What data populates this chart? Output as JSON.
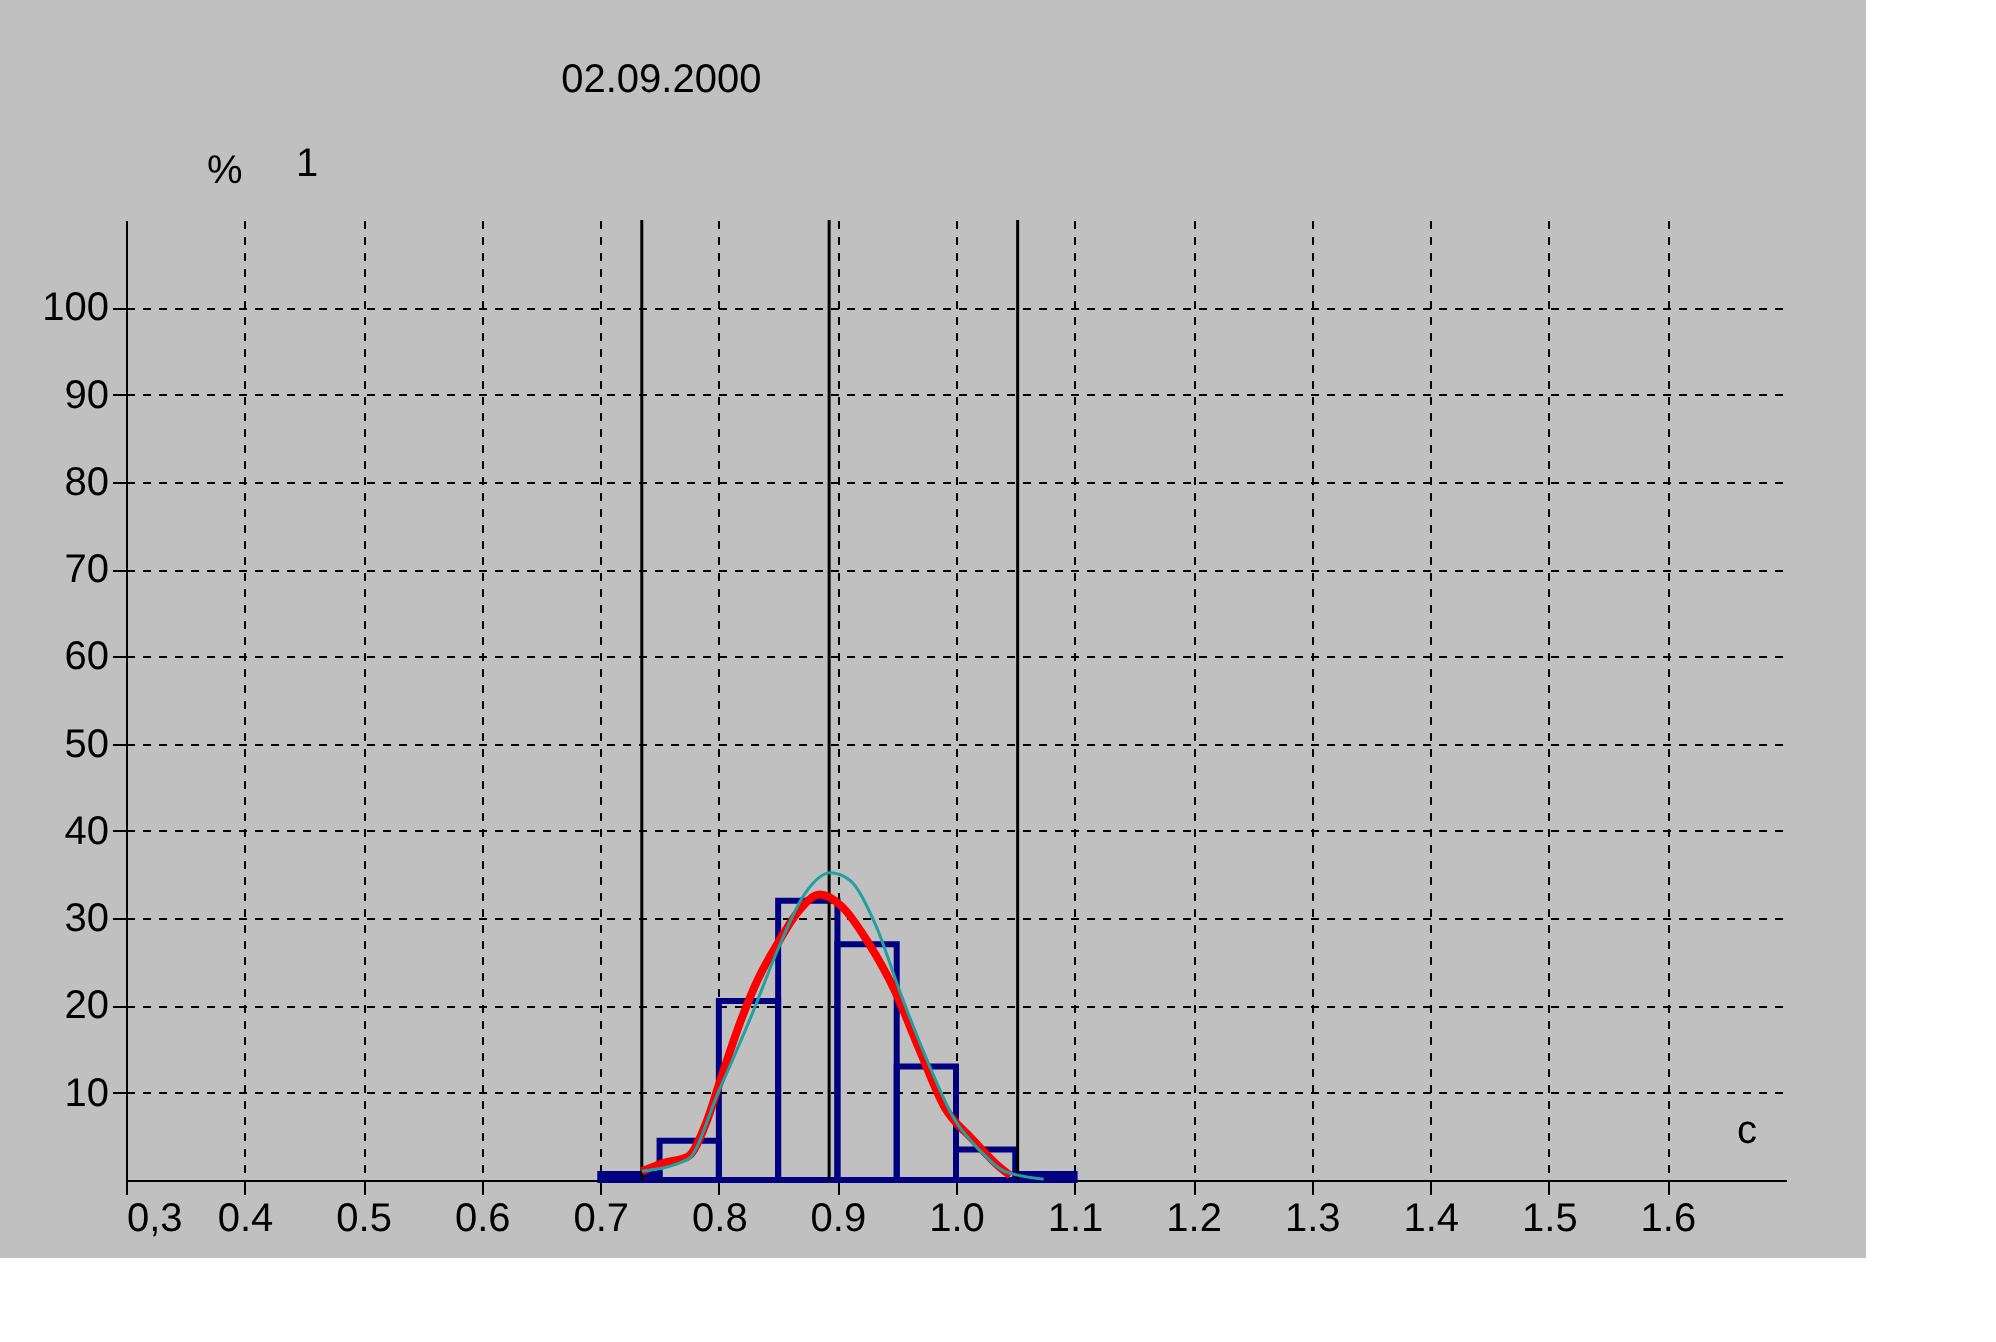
{
  "chart_data": {
    "type": "histogram",
    "title": "02.09.2000",
    "xlabel": "c",
    "ylabel": "%",
    "annotations": [
      "1"
    ],
    "bins": [
      0.7,
      0.75,
      0.8,
      0.85,
      0.9,
      0.95,
      1.0,
      1.05,
      1.1
    ],
    "values": [
      0.7,
      4.5,
      20.5,
      32,
      27,
      13,
      3.5,
      0.7
    ],
    "color": "#000080",
    "series": [
      {
        "type": "line",
        "color": "#ff0000",
        "x": [
          0.735,
          0.752,
          0.774,
          0.79,
          0.8,
          0.817,
          0.833,
          0.85,
          0.866,
          0.885,
          0.904,
          0.926,
          0.948,
          0.969,
          0.991,
          1.013,
          1.035,
          1.046
        ],
        "values": [
          1,
          1.9,
          2.7,
          6.8,
          10.9,
          17.7,
          23,
          27.2,
          30.6,
          32.7,
          31.3,
          27.2,
          21.8,
          15,
          8.2,
          4.8,
          1.7,
          0.5
        ]
      },
      {
        "type": "line",
        "color": "#20a0a0",
        "x": [
          0.735,
          0.774,
          0.8,
          0.828,
          0.85,
          0.872,
          0.894,
          0.91,
          0.932,
          0.954,
          0.976,
          0.998,
          1.02,
          1.041,
          1.074
        ],
        "values": [
          1,
          2.4,
          10.2,
          19,
          26.5,
          32.7,
          35.2,
          34.4,
          29.3,
          21.1,
          13.6,
          7.1,
          3.4,
          1,
          0.1
        ]
      }
    ],
    "ref_lines": [
      {
        "axis": "x",
        "value": 0.735,
        "color": "#000000"
      },
      {
        "axis": "x",
        "value": 0.893,
        "color": "#000000"
      },
      {
        "axis": "x",
        "value": 1.052,
        "color": "#000000"
      }
    ],
    "xlim": [
      0.3,
      1.7
    ],
    "ylim": [
      0,
      110
    ],
    "xticks": [
      {
        "value": 0.3,
        "label": "0,3"
      },
      0.4,
      0.5,
      0.6,
      0.7,
      0.8,
      0.9,
      {
        "value": 1.0,
        "label": "1.0"
      },
      1.1,
      1.2,
      1.3,
      1.4,
      1.5,
      1.6
    ],
    "yticks": [
      10,
      20,
      30,
      40,
      50,
      60,
      70,
      80,
      90,
      100
    ],
    "grid": true,
    "line_style": "solid",
    "marker": "none"
  }
}
